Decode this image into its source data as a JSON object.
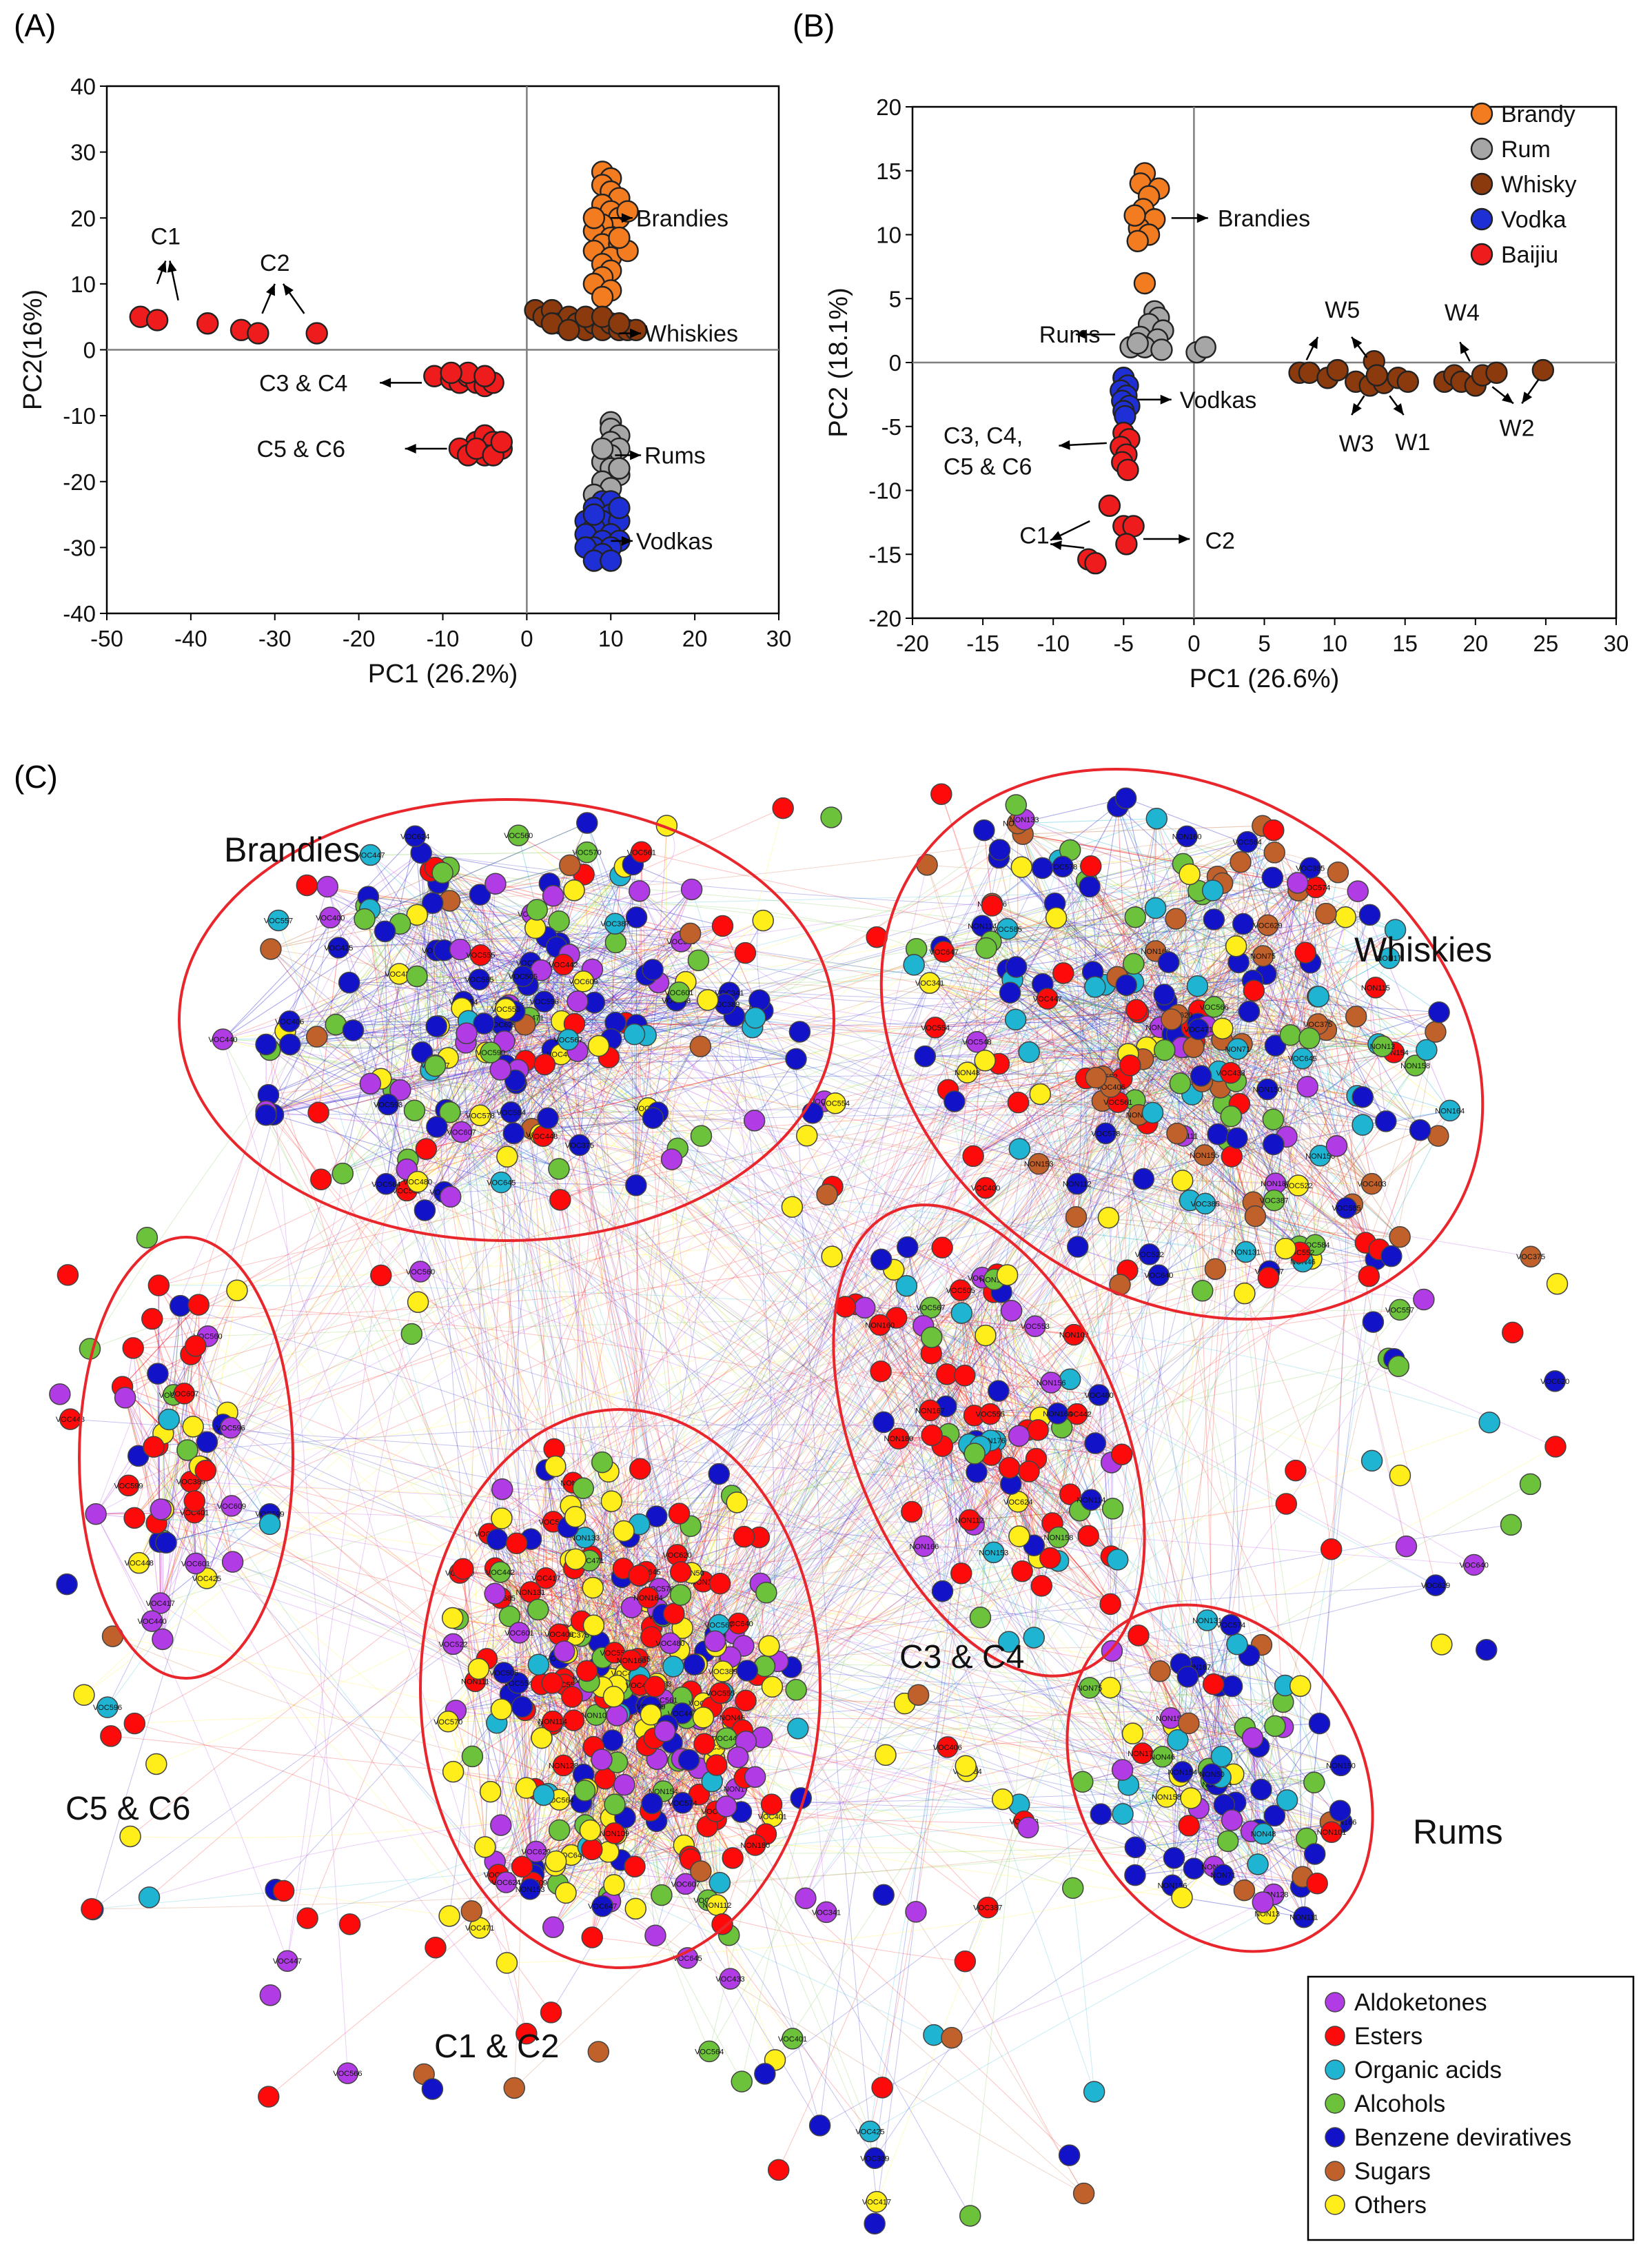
{
  "panels": {
    "a": "(A)",
    "b": "(B)",
    "c": "(C)"
  },
  "colors": {
    "brandy": "#f47c20",
    "rum": "#a6a6a6",
    "whisky": "#8b3a0e",
    "vodka": "#1f2fd6",
    "baijiu": "#ee1c1c",
    "aldoketones": "#b13ce6",
    "esters": "#ff0a0a",
    "organic_acids": "#1fb5d2",
    "alcohols": "#6cc23a",
    "benzene": "#1212c8",
    "sugars": "#c0602a",
    "others": "#ffee1a",
    "ellipse": "#e8262c"
  },
  "chart_data": [
    {
      "id": "A",
      "type": "scatter",
      "title": "",
      "xlabel": "PC1 (26.2%)",
      "ylabel": "PC2(16%)",
      "xlim": [
        -50,
        30
      ],
      "ylim": [
        -40,
        40
      ],
      "xticks": [
        -50,
        -40,
        -30,
        -20,
        -10,
        0,
        10,
        20,
        30
      ],
      "yticks": [
        -40,
        -30,
        -20,
        -10,
        0,
        10,
        20,
        30,
        40
      ],
      "series": [
        {
          "name": "Brandies",
          "color_key": "brandy",
          "points": [
            [
              9,
              27
            ],
            [
              10,
              26
            ],
            [
              9,
              25
            ],
            [
              10,
              24
            ],
            [
              11,
              23
            ],
            [
              9,
              22
            ],
            [
              10,
              21
            ],
            [
              11,
              20
            ],
            [
              9,
              19
            ],
            [
              8,
              18
            ],
            [
              10,
              17
            ],
            [
              9,
              16
            ],
            [
              11,
              16
            ],
            [
              8,
              15
            ],
            [
              10,
              14
            ],
            [
              9,
              13
            ],
            [
              10,
              12
            ],
            [
              9,
              11
            ],
            [
              8,
              10
            ],
            [
              10,
              9
            ],
            [
              9,
              8
            ],
            [
              12,
              15
            ],
            [
              11,
              17
            ],
            [
              12,
              21
            ],
            [
              8,
              20
            ]
          ]
        },
        {
          "name": "Whiskies",
          "color_key": "whisky",
          "points": [
            [
              1,
              6
            ],
            [
              2,
              5
            ],
            [
              3,
              6
            ],
            [
              4,
              4
            ],
            [
              5,
              5
            ],
            [
              6,
              4
            ],
            [
              7,
              3
            ],
            [
              8,
              4
            ],
            [
              9,
              3
            ],
            [
              10,
              4
            ],
            [
              11,
              3
            ],
            [
              12,
              3
            ],
            [
              13,
              3
            ],
            [
              3,
              4
            ],
            [
              5,
              3
            ],
            [
              7,
              5
            ],
            [
              9,
              5
            ],
            [
              11,
              4
            ]
          ]
        },
        {
          "name": "Rums",
          "color_key": "rum",
          "points": [
            [
              10,
              -11
            ],
            [
              10,
              -12
            ],
            [
              11,
              -13
            ],
            [
              10,
              -14
            ],
            [
              11,
              -15
            ],
            [
              10,
              -16
            ],
            [
              9,
              -17
            ],
            [
              10,
              -18
            ],
            [
              11,
              -19
            ],
            [
              9,
              -20
            ],
            [
              10,
              -21
            ],
            [
              8,
              -22
            ],
            [
              11,
              -18
            ],
            [
              9,
              -15
            ]
          ]
        },
        {
          "name": "Vodkas",
          "color_key": "vodka",
          "points": [
            [
              9,
              -23
            ],
            [
              10,
              -23
            ],
            [
              8,
              -24
            ],
            [
              10,
              -25
            ],
            [
              7,
              -26
            ],
            [
              9,
              -26
            ],
            [
              11,
              -26
            ],
            [
              8,
              -27
            ],
            [
              10,
              -28
            ],
            [
              7,
              -28
            ],
            [
              9,
              -29
            ],
            [
              11,
              -29
            ],
            [
              8,
              -30
            ],
            [
              10,
              -30
            ],
            [
              7,
              -30
            ],
            [
              9,
              -31
            ],
            [
              8,
              -32
            ],
            [
              10,
              -32
            ],
            [
              11,
              -24
            ],
            [
              8,
              -25
            ]
          ]
        },
        {
          "name": "C1",
          "color_key": "baijiu",
          "points": [
            [
              -46,
              5
            ],
            [
              -44,
              4.5
            ]
          ]
        },
        {
          "name": "C2",
          "color_key": "baijiu",
          "points": [
            [
              -38,
              4
            ],
            [
              -34,
              3
            ],
            [
              -32,
              2.5
            ],
            [
              -25,
              2.5
            ]
          ]
        },
        {
          "name": "C3 & C4",
          "color_key": "baijiu",
          "points": [
            [
              -11,
              -4
            ],
            [
              -9,
              -4.5
            ],
            [
              -8,
              -5
            ],
            [
              -7,
              -4
            ],
            [
              -6,
              -5
            ],
            [
              -5,
              -5.5
            ],
            [
              -4,
              -5
            ],
            [
              -7,
              -3.5
            ],
            [
              -5,
              -4
            ],
            [
              -9,
              -3.5
            ]
          ]
        },
        {
          "name": "C5 & C6",
          "color_key": "baijiu",
          "points": [
            [
              -6,
              -14
            ],
            [
              -5,
              -13
            ],
            [
              -4,
              -14
            ],
            [
              -3,
              -15
            ],
            [
              -5,
              -16
            ],
            [
              -8,
              -15
            ],
            [
              -7,
              -16
            ],
            [
              -6,
              -15
            ],
            [
              -4,
              -16
            ],
            [
              -3,
              -14
            ]
          ]
        }
      ],
      "annotations": [
        {
          "text": "Brandies",
          "x": 13,
          "y": 20
        },
        {
          "text": "Whiskies",
          "x": 14,
          "y": 2.5
        },
        {
          "text": "Rums",
          "x": 14,
          "y": -16
        },
        {
          "text": "Vodkas",
          "x": 13,
          "y": -29
        },
        {
          "text": "C1",
          "x": -43,
          "y": 16
        },
        {
          "text": "C2",
          "x": -30,
          "y": 12
        },
        {
          "text": "C3 & C4",
          "x": -13,
          "y": -5
        },
        {
          "text": "C5 & C6",
          "x": -10,
          "y": -15
        }
      ]
    },
    {
      "id": "B",
      "type": "scatter",
      "title": "",
      "xlabel": "PC1 (26.6%)",
      "ylabel": "PC2 (18.1%)",
      "xlim": [
        -20,
        30
      ],
      "ylim": [
        -20,
        20
      ],
      "xticks": [
        -20,
        -15,
        -10,
        -5,
        0,
        5,
        10,
        15,
        20,
        25,
        30
      ],
      "yticks": [
        -20,
        -15,
        -10,
        -5,
        0,
        5,
        10,
        15,
        20
      ],
      "legend": [
        "Brandy",
        "Rum",
        "Whisky",
        "Vodka",
        "Baijiu"
      ],
      "legend_position": "top-right",
      "series": [
        {
          "name": "Brandy",
          "color_key": "brandy",
          "points": [
            [
              -3.5,
              14.8
            ],
            [
              -3.8,
              14
            ],
            [
              -2.5,
              13.6
            ],
            [
              -3.2,
              13
            ],
            [
              -3.6,
              12
            ],
            [
              -2.8,
              11.2
            ],
            [
              -3.9,
              10.5
            ],
            [
              -3.2,
              10
            ],
            [
              -4,
              9.5
            ],
            [
              -3.5,
              6.2
            ],
            [
              -4.2,
              11.5
            ]
          ]
        },
        {
          "name": "Rum",
          "color_key": "rum",
          "points": [
            [
              -2.8,
              4
            ],
            [
              -2.5,
              3.5
            ],
            [
              -3.2,
              3
            ],
            [
              -2.2,
              2.5
            ],
            [
              -3.8,
              2
            ],
            [
              -2.6,
              1.8
            ],
            [
              -4.5,
              1.2
            ],
            [
              -3.5,
              1.2
            ],
            [
              -2.3,
              1
            ],
            [
              0.2,
              0.8
            ],
            [
              0.8,
              1.2
            ],
            [
              -4,
              1.5
            ]
          ]
        },
        {
          "name": "Whisky",
          "color_key": "whisky",
          "points": [
            [
              7.5,
              -0.8
            ],
            [
              8.2,
              -0.8
            ],
            [
              9.5,
              -1.2
            ],
            [
              10.2,
              -0.6
            ],
            [
              11.5,
              -1.5
            ],
            [
              12.5,
              -1.8
            ],
            [
              12.8,
              0.1
            ],
            [
              13.5,
              -1.6
            ],
            [
              14.5,
              -1.2
            ],
            [
              15.2,
              -1.5
            ],
            [
              17.8,
              -1.5
            ],
            [
              18.5,
              -1
            ],
            [
              19,
              -1.5
            ],
            [
              20,
              -1.8
            ],
            [
              20.5,
              -1
            ],
            [
              21.5,
              -0.8
            ],
            [
              24.8,
              -0.6
            ],
            [
              13,
              -1
            ]
          ]
        },
        {
          "name": "Vodka",
          "color_key": "vodka",
          "points": [
            [
              -5,
              -1.2
            ],
            [
              -4.7,
              -1.8
            ],
            [
              -5.2,
              -2.2
            ],
            [
              -4.8,
              -2.6
            ],
            [
              -5.1,
              -3
            ],
            [
              -4.6,
              -3.4
            ],
            [
              -5,
              -3.8
            ],
            [
              -4.9,
              -4.2
            ]
          ]
        },
        {
          "name": "Baijiu",
          "color_key": "baijiu",
          "points": [
            [
              -5,
              -5.5
            ],
            [
              -4.6,
              -6
            ],
            [
              -5.2,
              -6.6
            ],
            [
              -4.8,
              -7.2
            ],
            [
              -5.1,
              -7.8
            ],
            [
              -4.7,
              -8.4
            ],
            [
              -6,
              -11.2
            ],
            [
              -5,
              -12.8
            ],
            [
              -4.3,
              -12.8
            ],
            [
              -4.8,
              -14.2
            ],
            [
              -7.5,
              -15.4
            ],
            [
              -7,
              -15.7
            ]
          ]
        }
      ],
      "annotations": [
        {
          "text": "Brandies",
          "x": 1.2,
          "y": 11.3
        },
        {
          "text": "Rums",
          "x": -11,
          "y": 2.2
        },
        {
          "text": "Vodkas",
          "x": -1.5,
          "y": -2.9
        },
        {
          "text": "C3, C4,",
          "x": -17.8,
          "y": -5.7
        },
        {
          "text": "C5 & C6",
          "x": -17.8,
          "y": -8.1
        },
        {
          "text": "C1",
          "x": -12.4,
          "y": -13.5
        },
        {
          "text": "C2",
          "x": 0.2,
          "y": -13.9
        },
        {
          "text": "W5",
          "x": 9.3,
          "y": 3.5
        },
        {
          "text": "W4",
          "x": 17.8,
          "y": 3.3
        },
        {
          "text": "W3",
          "x": 10.3,
          "y": -6.3
        },
        {
          "text": "W1",
          "x": 14.3,
          "y": -6.2
        },
        {
          "text": "W2",
          "x": 21.7,
          "y": -5.1
        }
      ]
    },
    {
      "id": "C",
      "type": "network",
      "clusters": [
        "Brandies",
        "Whiskies",
        "C5 & C6",
        "C3 & C4",
        "C1 & C2",
        "Rums"
      ],
      "legend": [
        "Aldoketones",
        "Esters",
        "Organic acids",
        "Alcohols",
        "Benzene deviratives",
        "Sugars",
        "Others"
      ],
      "legend_position": "bottom-right",
      "node_labels": [
        "VOC574",
        "VOC561",
        "VOC578",
        "VOC548",
        "VOC554",
        "VOC522",
        "VOC400",
        "VOC385",
        "VOC375",
        "VOC552",
        "VOC557",
        "VOC585",
        "VOC620",
        "VOC629",
        "VOC640",
        "VOC645",
        "VOC647",
        "VOC433",
        "VOC471",
        "VOC447",
        "VOC566",
        "VOC564",
        "VOC584",
        "VOC406",
        "VOC403",
        "VOC341",
        "VOC387",
        "VOC389",
        "VOC401",
        "VOC417",
        "VOC425",
        "VOC440",
        "VOC448",
        "VOC596",
        "VOC599",
        "VOC560",
        "VOC601",
        "VOC607",
        "VOC609",
        "VOC624",
        "VOC570",
        "VOC593",
        "VOC567",
        "VOC480",
        "VOC442",
        "VOC505",
        "VOC553",
        "VOC555",
        "NON160",
        "NON109",
        "NON112",
        "NON114",
        "NON153",
        "NON180",
        "NON164",
        "NON166",
        "NON167",
        "NON176",
        "NON155",
        "NON158",
        "NON156",
        "NON101",
        "NON128",
        "NON115",
        "NON150",
        "NON133",
        "NON131",
        "NON111",
        "NON154",
        "NON13",
        "NON17",
        "NON75",
        "NON71",
        "NON50",
        "NON48",
        "NON46"
      ]
    }
  ]
}
